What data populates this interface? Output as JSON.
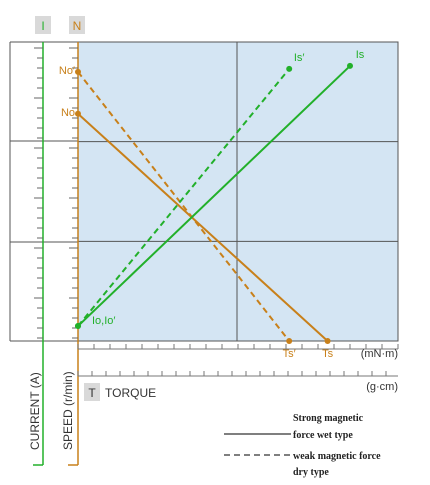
{
  "chart_data": {
    "type": "line",
    "x_axis": {
      "label": "TORQUE",
      "label_marker": "T",
      "units": [
        "(mN·m)",
        "(g·cm)"
      ],
      "xlim": [
        0,
        1
      ]
    },
    "y_axis_left": {
      "label": "CURRENT (A)",
      "marker": "I",
      "color": "#22b02a"
    },
    "y_axis_right": {
      "label": "SPEED (r/min)",
      "marker": "N",
      "color": "#c8801a"
    },
    "ylim": [
      0,
      1
    ],
    "grid": true,
    "plot_background": "#d4e5f3",
    "series": [
      {
        "name": "Strong magnetic force wet type",
        "kind": "speed",
        "color": "#c8801a",
        "dash": "solid",
        "points": [
          {
            "x": 0,
            "y": 0.76,
            "label": "No"
          },
          {
            "x": 0.78,
            "y": 0,
            "label": "Ts"
          }
        ]
      },
      {
        "name": "weak magnetic force dry type",
        "kind": "speed",
        "color": "#c8801a",
        "dash": "dashed",
        "points": [
          {
            "x": 0,
            "y": 0.9,
            "label": "No′"
          },
          {
            "x": 0.66,
            "y": 0,
            "label": "Ts′"
          }
        ]
      },
      {
        "name": "Strong magnetic force wet type",
        "kind": "current",
        "color": "#22b02a",
        "dash": "solid",
        "points": [
          {
            "x": 0,
            "y": 0.05,
            "label": "Io,Io′"
          },
          {
            "x": 0.85,
            "y": 0.92,
            "label": "Is"
          }
        ]
      },
      {
        "name": "weak magnetic force dry type",
        "kind": "current",
        "color": "#22b02a",
        "dash": "dashed",
        "points": [
          {
            "x": 0,
            "y": 0.05,
            "label": ""
          },
          {
            "x": 0.66,
            "y": 0.91,
            "label": "Is′"
          }
        ]
      }
    ],
    "legend": {
      "position": "bottom-right",
      "entries": [
        {
          "line1": "Strong magnetic",
          "line2": "force wet type",
          "dash": "solid"
        },
        {
          "line1": "weak magnetic force",
          "line2": "dry type",
          "dash": "dashed"
        }
      ]
    }
  }
}
